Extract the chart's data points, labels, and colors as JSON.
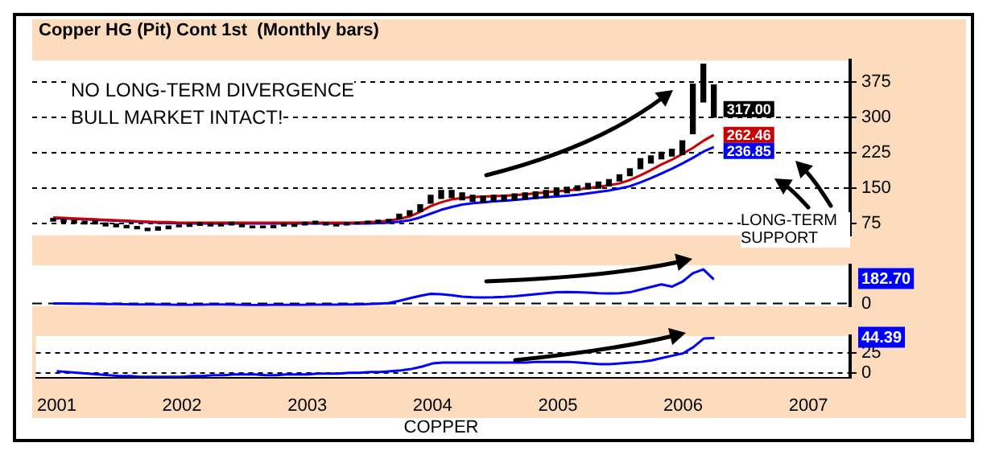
{
  "chart_data": [
    {
      "type": "bar",
      "title": "Copper HG (Pit) Cont 1st  (Monthly bars)",
      "annotations": [
        "NO LONG-TERM DIVERGENCE",
        "BULL MARKET INTACT!",
        "LONG-TERM SUPPORT",
        {
          "text": "317.00",
          "x": "2006-04",
          "y": 317
        },
        {
          "text": "262.46",
          "x": "2006-04",
          "y": 262.46
        },
        {
          "text": "236.85",
          "x": "2006-04",
          "y": 236.85
        }
      ],
      "legend": false,
      "grid": "y",
      "tick_labels": "y",
      "x": [
        "2001-01",
        "2001-02",
        "2001-03",
        "2001-04",
        "2001-05",
        "2001-06",
        "2001-07",
        "2001-08",
        "2001-09",
        "2001-10",
        "2001-11",
        "2001-12",
        "2002-01",
        "2002-02",
        "2002-03",
        "2002-04",
        "2002-05",
        "2002-06",
        "2002-07",
        "2002-08",
        "2002-09",
        "2002-10",
        "2002-11",
        "2002-12",
        "2003-01",
        "2003-02",
        "2003-03",
        "2003-04",
        "2003-05",
        "2003-06",
        "2003-07",
        "2003-08",
        "2003-09",
        "2003-10",
        "2003-11",
        "2003-12",
        "2004-01",
        "2004-02",
        "2004-03",
        "2004-04",
        "2004-05",
        "2004-06",
        "2004-07",
        "2004-08",
        "2004-09",
        "2004-10",
        "2004-11",
        "2004-12",
        "2005-01",
        "2005-02",
        "2005-03",
        "2005-04",
        "2005-05",
        "2005-06",
        "2005-07",
        "2005-08",
        "2005-09",
        "2005-10",
        "2005-11",
        "2005-12",
        "2006-01",
        "2006-02",
        "2006-03",
        "2006-04"
      ],
      "xlim": [
        "2000-11",
        "2007-05"
      ],
      "xticks": [
        "2001",
        "2002",
        "2003",
        "2004",
        "2005",
        "2006",
        "2007"
      ],
      "ylim": [
        50,
        420
      ],
      "yticks": [
        75,
        150,
        225,
        300,
        375
      ],
      "series": [
        {
          "color": "#000000",
          "base": [
            80,
            78,
            76,
            74,
            74,
            70,
            68,
            66,
            64,
            60,
            61,
            64,
            68,
            69,
            71,
            70,
            70,
            72,
            68,
            66,
            66,
            66,
            70,
            69,
            72,
            74,
            72,
            70,
            72,
            74,
            76,
            77,
            78,
            85,
            92,
            100,
            118,
            128,
            130,
            125,
            122,
            120,
            122,
            123,
            125,
            127,
            128,
            130,
            135,
            140,
            145,
            148,
            150,
            155,
            165,
            176,
            191,
            203,
            212,
            218,
            221,
            265,
            332,
            300
          ],
          "values": [
            6,
            6,
            6,
            6,
            6,
            6,
            6,
            5,
            5,
            5,
            7,
            6,
            4,
            6,
            6,
            5,
            5,
            6,
            6,
            4,
            4,
            5,
            5,
            5,
            6,
            6,
            5,
            4,
            5,
            4,
            4,
            5,
            6,
            10,
            10,
            15,
            17,
            17,
            15,
            15,
            13,
            13,
            13,
            12,
            13,
            13,
            14,
            15,
            15,
            12,
            10,
            12,
            13,
            13,
            13,
            15,
            21,
            15,
            14,
            14,
            29,
            105,
            80,
            68
          ]
        },
        {
          "type": "line",
          "color": "#cc0000",
          "values": [
            88,
            87,
            86,
            85,
            84,
            83,
            82,
            81,
            80,
            79,
            78,
            78,
            77,
            77,
            77,
            77,
            77,
            77,
            77,
            77,
            77,
            77,
            77,
            77,
            77,
            77,
            77,
            77,
            77,
            77,
            78,
            79,
            81,
            85,
            90,
            100,
            112,
            120,
            126,
            129,
            131,
            132,
            133,
            134,
            135,
            137,
            139,
            141,
            143,
            145,
            147,
            150,
            153,
            156,
            160,
            167,
            177,
            188,
            200,
            210,
            222,
            235,
            250,
            262.46
          ]
        },
        {
          "type": "line",
          "color": "#0000ff",
          "values": [
            86,
            86,
            85,
            84,
            83,
            82,
            81,
            80,
            79,
            78,
            77,
            76,
            76,
            75,
            75,
            75,
            75,
            75,
            75,
            75,
            75,
            75,
            75,
            75,
            75,
            75,
            75,
            75,
            75,
            75,
            75,
            76,
            77,
            79,
            82,
            88,
            96,
            104,
            110,
            115,
            118,
            120,
            122,
            123,
            125,
            127,
            129,
            131,
            132,
            134,
            136,
            139,
            142,
            145,
            149,
            154,
            162,
            171,
            181,
            191,
            202,
            214,
            227,
            236.85
          ]
        }
      ]
    },
    {
      "type": "line",
      "legend": false,
      "tick_labels": "y",
      "ref_lines": [
        {
          "axis": "y",
          "value": 0,
          "color": "#000000",
          "line_style": "dashed"
        }
      ],
      "x": [
        "2001-01",
        "2001-02",
        "2001-03",
        "2001-04",
        "2001-05",
        "2001-06",
        "2001-07",
        "2001-08",
        "2001-09",
        "2001-10",
        "2001-11",
        "2001-12",
        "2002-01",
        "2002-02",
        "2002-03",
        "2002-04",
        "2002-05",
        "2002-06",
        "2002-07",
        "2002-08",
        "2002-09",
        "2002-10",
        "2002-11",
        "2002-12",
        "2003-01",
        "2003-02",
        "2003-03",
        "2003-04",
        "2003-05",
        "2003-06",
        "2003-07",
        "2003-08",
        "2003-09",
        "2003-10",
        "2003-11",
        "2003-12",
        "2004-01",
        "2004-02",
        "2004-03",
        "2004-04",
        "2004-05",
        "2004-06",
        "2004-07",
        "2004-08",
        "2004-09",
        "2004-10",
        "2004-11",
        "2004-12",
        "2005-01",
        "2005-02",
        "2005-03",
        "2005-04",
        "2005-05",
        "2005-06",
        "2005-07",
        "2005-08",
        "2005-09",
        "2005-10",
        "2005-11",
        "2005-12",
        "2006-01",
        "2006-02",
        "2006-03",
        "2006-04"
      ],
      "xlim": [
        "2000-11",
        "2007-05"
      ],
      "xticks": [
        "2001",
        "2002",
        "2003",
        "2004",
        "2005",
        "2006",
        "2007"
      ],
      "ylim": [
        -20,
        290
      ],
      "yticks": [
        0,
        {
          "value": 182.7,
          "label": "182.70"
        }
      ],
      "series": [
        {
          "color": "#0000ff",
          "values": [
            0,
            0,
            -1,
            -2,
            -3,
            -4,
            -5,
            -6,
            -7,
            -8,
            -8,
            -9,
            -10,
            -10,
            -9,
            -8,
            -8,
            -9,
            -10,
            -12,
            -12,
            -11,
            -10,
            -10,
            -10,
            -9,
            -9,
            -9,
            -8,
            -7,
            -5,
            -2,
            3,
            20,
            40,
            58,
            73,
            70,
            62,
            52,
            48,
            46,
            47,
            50,
            55,
            62,
            70,
            78,
            85,
            87,
            86,
            82,
            78,
            76,
            78,
            85,
            105,
            125,
            145,
            128,
            165,
            230,
            259,
            182.7
          ]
        }
      ]
    },
    {
      "type": "line",
      "xlabel": "COPPER",
      "legend": false,
      "grid": "y",
      "x": [
        "2001-01",
        "2001-02",
        "2001-03",
        "2001-04",
        "2001-05",
        "2001-06",
        "2001-07",
        "2001-08",
        "2001-09",
        "2001-10",
        "2001-11",
        "2001-12",
        "2002-01",
        "2002-02",
        "2002-03",
        "2002-04",
        "2002-05",
        "2002-06",
        "2002-07",
        "2002-08",
        "2002-09",
        "2002-10",
        "2002-11",
        "2002-12",
        "2003-01",
        "2003-02",
        "2003-03",
        "2003-04",
        "2003-05",
        "2003-06",
        "2003-07",
        "2003-08",
        "2003-09",
        "2003-10",
        "2003-11",
        "2003-12",
        "2004-01",
        "2004-02",
        "2004-03",
        "2004-04",
        "2004-05",
        "2004-06",
        "2004-07",
        "2004-08",
        "2004-09",
        "2004-10",
        "2004-11",
        "2004-12",
        "2005-01",
        "2005-02",
        "2005-03",
        "2005-04",
        "2005-05",
        "2005-06",
        "2005-07",
        "2005-08",
        "2005-09",
        "2005-10",
        "2005-11",
        "2005-12",
        "2006-01",
        "2006-02",
        "2006-03",
        "2006-04"
      ],
      "xlim": [
        "2000-11",
        "2007-05"
      ],
      "xticks": [
        "2001",
        "2002",
        "2003",
        "2004",
        "2005",
        "2006",
        "2007"
      ],
      "ylim": [
        -6,
        47
      ],
      "yticks": [
        0,
        25,
        {
          "value": 44.39,
          "label": "44.39"
        }
      ],
      "series": [
        {
          "color": "#0000ff",
          "values": [
            2,
            1,
            0,
            -1,
            -2,
            -3,
            -4,
            -4,
            -5,
            -5,
            -5,
            -5,
            -5,
            -4,
            -4,
            -3,
            -3,
            -2,
            -2,
            -2,
            -3,
            -3,
            -2,
            -2,
            -2,
            -1,
            -1,
            -1,
            0,
            0,
            1,
            1,
            2,
            3,
            5,
            8,
            12,
            13,
            13,
            13,
            13,
            13,
            13,
            13,
            13,
            13,
            14,
            14,
            14,
            14,
            13,
            12,
            11,
            11,
            12,
            13,
            14,
            16,
            19,
            22,
            25,
            33,
            44,
            44.39
          ]
        }
      ]
    }
  ]
}
